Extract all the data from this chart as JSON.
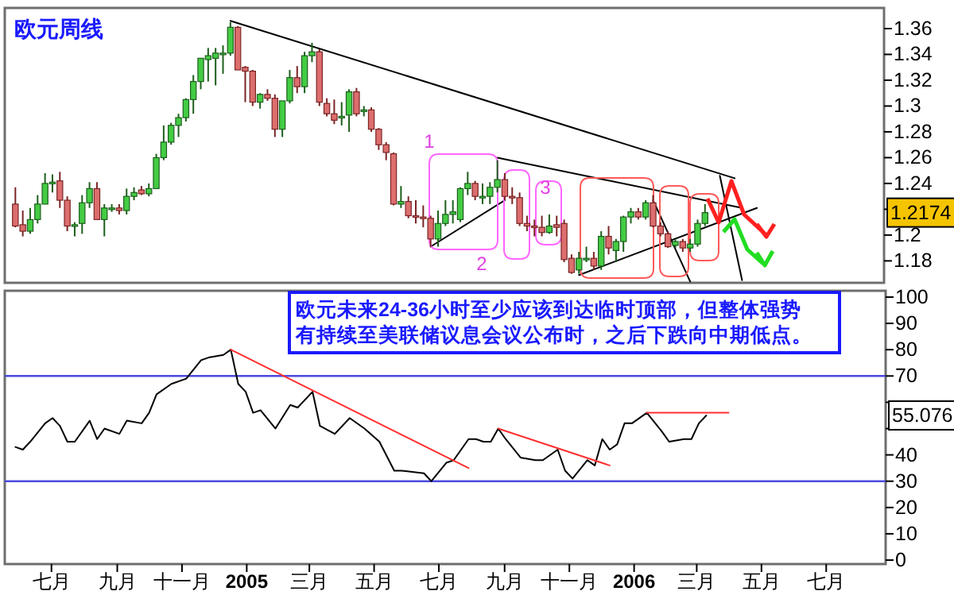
{
  "chart_data": [
    {
      "type": "candlestick",
      "title": "欧元周线",
      "x": [
        "2004-05-28",
        "2004-06-04",
        "2004-06-11",
        "2004-06-18",
        "2004-06-25",
        "2004-07-02",
        "2004-07-09",
        "2004-07-16",
        "2004-07-23",
        "2004-07-30",
        "2004-08-06",
        "2004-08-13",
        "2004-08-20",
        "2004-08-27",
        "2004-09-03",
        "2004-09-10",
        "2004-09-17",
        "2004-09-24",
        "2004-10-01",
        "2004-10-08",
        "2004-10-15",
        "2004-10-22",
        "2004-10-29",
        "2004-11-05",
        "2004-11-12",
        "2004-11-19",
        "2004-11-26",
        "2004-12-03",
        "2004-12-10",
        "2004-12-17",
        "2004-12-24",
        "2004-12-31",
        "2005-01-07",
        "2005-01-14",
        "2005-01-21",
        "2005-01-28",
        "2005-02-04",
        "2005-02-11",
        "2005-02-18",
        "2005-02-25",
        "2005-03-04",
        "2005-03-11",
        "2005-03-18",
        "2005-03-25",
        "2005-04-01",
        "2005-04-08",
        "2005-04-15",
        "2005-04-22",
        "2005-04-29",
        "2005-05-06",
        "2005-05-13",
        "2005-05-20",
        "2005-05-27",
        "2005-06-03",
        "2005-06-10",
        "2005-06-17",
        "2005-06-24",
        "2005-07-01",
        "2005-07-08",
        "2005-07-15",
        "2005-07-22",
        "2005-07-29",
        "2005-08-05",
        "2005-08-12",
        "2005-08-19",
        "2005-08-26",
        "2005-09-02",
        "2005-09-09",
        "2005-09-16",
        "2005-09-23",
        "2005-09-30",
        "2005-10-07",
        "2005-10-14",
        "2005-10-21",
        "2005-10-28",
        "2005-11-04",
        "2005-11-11",
        "2005-11-18",
        "2005-11-25",
        "2005-12-02",
        "2005-12-09",
        "2005-12-16",
        "2005-12-23",
        "2005-12-30",
        "2006-01-06",
        "2006-01-13",
        "2006-01-20",
        "2006-01-27",
        "2006-02-03",
        "2006-02-10",
        "2006-02-17",
        "2006-02-24",
        "2006-03-03",
        "2006-03-10"
      ],
      "ohlc": [
        [
          1.224,
          1.237,
          1.206,
          1.207
        ],
        [
          1.208,
          1.219,
          1.199,
          1.203
        ],
        [
          1.203,
          1.221,
          1.201,
          1.212
        ],
        [
          1.212,
          1.231,
          1.209,
          1.224
        ],
        [
          1.224,
          1.248,
          1.224,
          1.24
        ],
        [
          1.24,
          1.247,
          1.233,
          1.241
        ],
        [
          1.242,
          1.249,
          1.221,
          1.227
        ],
        [
          1.227,
          1.23,
          1.203,
          1.207
        ],
        [
          1.207,
          1.21,
          1.199,
          1.208
        ],
        [
          1.209,
          1.231,
          1.201,
          1.225
        ],
        [
          1.225,
          1.241,
          1.221,
          1.236
        ],
        [
          1.236,
          1.241,
          1.212,
          1.212
        ],
        [
          1.212,
          1.224,
          1.199,
          1.221
        ],
        [
          1.22,
          1.224,
          1.218,
          1.221
        ],
        [
          1.221,
          1.224,
          1.216,
          1.219
        ],
        [
          1.219,
          1.236,
          1.216,
          1.23
        ],
        [
          1.23,
          1.237,
          1.227,
          1.233
        ],
        [
          1.235,
          1.238,
          1.231,
          1.232
        ],
        [
          1.232,
          1.24,
          1.23,
          1.236
        ],
        [
          1.236,
          1.263,
          1.236,
          1.26
        ],
        [
          1.26,
          1.285,
          1.258,
          1.272
        ],
        [
          1.272,
          1.287,
          1.27,
          1.285
        ],
        [
          1.285,
          1.294,
          1.276,
          1.291
        ],
        [
          1.291,
          1.306,
          1.288,
          1.305
        ],
        [
          1.305,
          1.324,
          1.294,
          1.319
        ],
        [
          1.319,
          1.337,
          1.313,
          1.337
        ],
        [
          1.336,
          1.345,
          1.319,
          1.339
        ],
        [
          1.337,
          1.345,
          1.316,
          1.341
        ],
        [
          1.341,
          1.347,
          1.325,
          1.341
        ],
        [
          1.341,
          1.365,
          1.339,
          1.361
        ],
        [
          1.361,
          1.362,
          1.328,
          1.328
        ],
        [
          1.33,
          1.331,
          1.303,
          1.327
        ],
        [
          1.327,
          1.328,
          1.3,
          1.303
        ],
        [
          1.303,
          1.31,
          1.298,
          1.309
        ],
        [
          1.309,
          1.313,
          1.304,
          1.306
        ],
        [
          1.306,
          1.309,
          1.276,
          1.282
        ],
        [
          1.282,
          1.304,
          1.276,
          1.304
        ],
        [
          1.304,
          1.328,
          1.302,
          1.322
        ],
        [
          1.322,
          1.331,
          1.31,
          1.315
        ],
        [
          1.315,
          1.342,
          1.31,
          1.339
        ],
        [
          1.339,
          1.349,
          1.334,
          1.342
        ],
        [
          1.342,
          1.344,
          1.3,
          1.303
        ],
        [
          1.302,
          1.306,
          1.292,
          1.294
        ],
        [
          1.294,
          1.305,
          1.286,
          1.289
        ],
        [
          1.291,
          1.303,
          1.285,
          1.292
        ],
        [
          1.293,
          1.313,
          1.28,
          1.311
        ],
        [
          1.311,
          1.314,
          1.292,
          1.294
        ],
        [
          1.296,
          1.3,
          1.292,
          1.297
        ],
        [
          1.297,
          1.299,
          1.28,
          1.282
        ],
        [
          1.282,
          1.283,
          1.266,
          1.27
        ],
        [
          1.27,
          1.272,
          1.258,
          1.264
        ],
        [
          1.263,
          1.264,
          1.223,
          1.224
        ],
        [
          1.224,
          1.238,
          1.221,
          1.226
        ],
        [
          1.226,
          1.23,
          1.213,
          1.215
        ],
        [
          1.215,
          1.227,
          1.209,
          1.214
        ],
        [
          1.214,
          1.223,
          1.206,
          1.213
        ],
        [
          1.213,
          1.215,
          1.191,
          1.197
        ],
        [
          1.197,
          1.219,
          1.191,
          1.209
        ],
        [
          1.209,
          1.227,
          1.207,
          1.216
        ],
        [
          1.216,
          1.227,
          1.209,
          1.218
        ],
        [
          1.212,
          1.237,
          1.21,
          1.236
        ],
        [
          1.236,
          1.249,
          1.231,
          1.24
        ],
        [
          1.24,
          1.242,
          1.227,
          1.23
        ],
        [
          1.23,
          1.24,
          1.224,
          1.23
        ],
        [
          1.23,
          1.241,
          1.224,
          1.237
        ],
        [
          1.237,
          1.258,
          1.233,
          1.243
        ],
        [
          1.243,
          1.248,
          1.227,
          1.23
        ],
        [
          1.23,
          1.237,
          1.224,
          1.229
        ],
        [
          1.229,
          1.233,
          1.207,
          1.209
        ],
        [
          1.209,
          1.215,
          1.203,
          1.207
        ],
        [
          1.207,
          1.212,
          1.199,
          1.206
        ],
        [
          1.206,
          1.215,
          1.199,
          1.202
        ],
        [
          1.202,
          1.216,
          1.201,
          1.207
        ],
        [
          1.208,
          1.215,
          1.199,
          1.206
        ],
        [
          1.209,
          1.212,
          1.179,
          1.181
        ],
        [
          1.182,
          1.185,
          1.17,
          1.171
        ],
        [
          1.173,
          1.187,
          1.17,
          1.182
        ],
        [
          1.182,
          1.191,
          1.179,
          1.182
        ],
        [
          1.182,
          1.187,
          1.173,
          1.176
        ],
        [
          1.176,
          1.203,
          1.173,
          1.199
        ],
        [
          1.199,
          1.207,
          1.185,
          1.19
        ],
        [
          1.188,
          1.197,
          1.179,
          1.195
        ],
        [
          1.195,
          1.215,
          1.187,
          1.214
        ],
        [
          1.214,
          1.221,
          1.209,
          1.218
        ],
        [
          1.218,
          1.221,
          1.212,
          1.214
        ],
        [
          1.214,
          1.227,
          1.212,
          1.225
        ],
        [
          1.225,
          1.231,
          1.206,
          1.207
        ],
        [
          1.207,
          1.21,
          1.199,
          1.201
        ],
        [
          1.201,
          1.203,
          1.19,
          1.191
        ],
        [
          1.192,
          1.197,
          1.19,
          1.195
        ],
        [
          1.195,
          1.197,
          1.187,
          1.19
        ],
        [
          1.19,
          1.197,
          1.187,
          1.193
        ],
        [
          1.193,
          1.212,
          1.191,
          1.209
        ],
        [
          1.209,
          1.224,
          1.207,
          1.2174
        ]
      ],
      "series": [
        {
          "type": "line",
          "color": "#000000",
          "x": [
            "2004-12-17",
            "2006-04-07"
          ],
          "values": [
            1.366,
            1.244
          ]
        },
        {
          "type": "line",
          "color": "#000000",
          "x": [
            "2005-08-26",
            "2006-04-14"
          ],
          "values": [
            1.26,
            1.221
          ]
        },
        {
          "type": "line",
          "color": "#000000",
          "x": [
            "2005-06-24",
            "2005-09-02"
          ],
          "values": [
            1.191,
            1.227
          ]
        },
        {
          "type": "line",
          "color": "#000000",
          "x": [
            "2005-11-11",
            "2006-04-28"
          ],
          "values": [
            1.169,
            1.221
          ]
        },
        {
          "type": "line",
          "color": "#000000",
          "x": [
            "2006-01-20",
            "2006-02-24"
          ],
          "values": [
            1.227,
            1.164
          ]
        },
        {
          "type": "line",
          "color": "#000000",
          "x": [
            "2006-03-24",
            "2006-04-14"
          ],
          "values": [
            1.246,
            1.165
          ]
        }
      ],
      "xlim": [
        "2004-05-18",
        "2006-08-26"
      ],
      "ylim": [
        1.163,
        1.376
      ],
      "yticks": [
        1.18,
        1.2,
        {
          "value": 1.22,
          "label": null
        },
        1.24,
        1.26,
        1.28,
        1.3,
        1.32,
        1.34,
        1.36
      ],
      "tick_labels": "y",
      "annotations": [
        "1",
        "2",
        "3",
        "1.2174"
      ]
    },
    {
      "type": "line",
      "series": [
        {
          "color": "#000000",
          "x": [
            "2004-05-28",
            "2004-06-04",
            "2004-06-11",
            "2004-06-25",
            "2004-07-02",
            "2004-07-09",
            "2004-07-16",
            "2004-07-23",
            "2004-08-06",
            "2004-08-13",
            "2004-08-20",
            "2004-09-03",
            "2004-09-10",
            "2004-09-24",
            "2004-10-01",
            "2004-10-08",
            "2004-10-22",
            "2004-11-05",
            "2004-11-19",
            "2004-11-26",
            "2004-12-10",
            "2004-12-17",
            "2004-12-24",
            "2004-12-31",
            "2005-01-07",
            "2005-01-14",
            "2005-01-28",
            "2005-02-11",
            "2005-02-18",
            "2005-03-04",
            "2005-03-11",
            "2005-03-25",
            "2005-04-08",
            "2005-04-22",
            "2005-05-06",
            "2005-05-20",
            "2005-05-27",
            "2005-06-17",
            "2005-06-24",
            "2005-07-08",
            "2005-07-15",
            "2005-07-29",
            "2005-08-05",
            "2005-08-12",
            "2005-08-19",
            "2005-08-26",
            "2005-09-02",
            "2005-09-16",
            "2005-09-30",
            "2005-10-07",
            "2005-10-21",
            "2005-10-28",
            "2005-11-04",
            "2005-11-18",
            "2005-11-25",
            "2005-12-02",
            "2005-12-09",
            "2005-12-16",
            "2005-12-23",
            "2005-12-30",
            "2006-01-13",
            "2006-01-27",
            "2006-02-03",
            "2006-02-17",
            "2006-02-24",
            "2006-03-03",
            "2006-03-10"
          ],
          "values": [
            43,
            42,
            45,
            52,
            54,
            51,
            45,
            45,
            53,
            46,
            50,
            48,
            53,
            52,
            56,
            63,
            67,
            69,
            76,
            77,
            78,
            80,
            67,
            64,
            56,
            57,
            50,
            59,
            58,
            64,
            51,
            48,
            54,
            50,
            45,
            34,
            34,
            33,
            30,
            37,
            38,
            46,
            46,
            45,
            45,
            50,
            46,
            39,
            38,
            38,
            42,
            34,
            31,
            38,
            36,
            46,
            42,
            44,
            52,
            52,
            56,
            49,
            45,
            46,
            46,
            52,
            55
          ]
        },
        {
          "color": "#ff3030",
          "x": [
            "2004-12-17",
            "2005-07-29"
          ],
          "values": [
            80,
            35
          ]
        },
        {
          "color": "#ff3030",
          "x": [
            "2005-08-26",
            "2005-12-09"
          ],
          "values": [
            50,
            36
          ]
        },
        {
          "color": "#ff3030",
          "x": [
            "2006-01-13",
            "2006-03-31"
          ],
          "values": [
            56,
            56
          ]
        }
      ],
      "xlim": [
        "2004-05-18",
        "2006-08-26"
      ],
      "ylim": [
        -1.5,
        102.4
      ],
      "xticks": [
        {
          "value": "2004-07-01",
          "label": "七月"
        },
        {
          "value": "2004-09-01",
          "label": "九月"
        },
        {
          "value": "2004-11-01",
          "label": "十一月"
        },
        {
          "value": "2005-01-01",
          "label": "2005"
        },
        {
          "value": "2005-03-01",
          "label": "三月"
        },
        {
          "value": "2005-05-01",
          "label": "五月"
        },
        {
          "value": "2005-07-01",
          "label": "七月"
        },
        {
          "value": "2005-09-01",
          "label": "九月"
        },
        {
          "value": "2005-11-01",
          "label": "十一月"
        },
        {
          "value": "2006-01-01",
          "label": "2006"
        },
        {
          "value": "2006-03-01",
          "label": "三月"
        },
        {
          "value": "2006-05-01",
          "label": "五月"
        },
        {
          "value": "2006-07-01",
          "label": "七月"
        }
      ],
      "yticks": [
        0,
        10,
        20,
        30,
        40,
        {
          "value": 50,
          "label": null
        },
        {
          "value": 60,
          "label": null
        },
        70,
        80,
        90,
        100
      ],
      "ref_lines": [
        {
          "axis": "y",
          "value": 70,
          "color": "#4a4ae0"
        },
        {
          "axis": "y",
          "value": 30,
          "color": "#4a4ae0"
        }
      ],
      "annotations": [
        "欧元未来24-36小时至少应该到达临时顶部，但整体强势有持续至美联储议息会议公布时，之后下跌向中期低点。",
        "55.076"
      ]
    }
  ]
}
